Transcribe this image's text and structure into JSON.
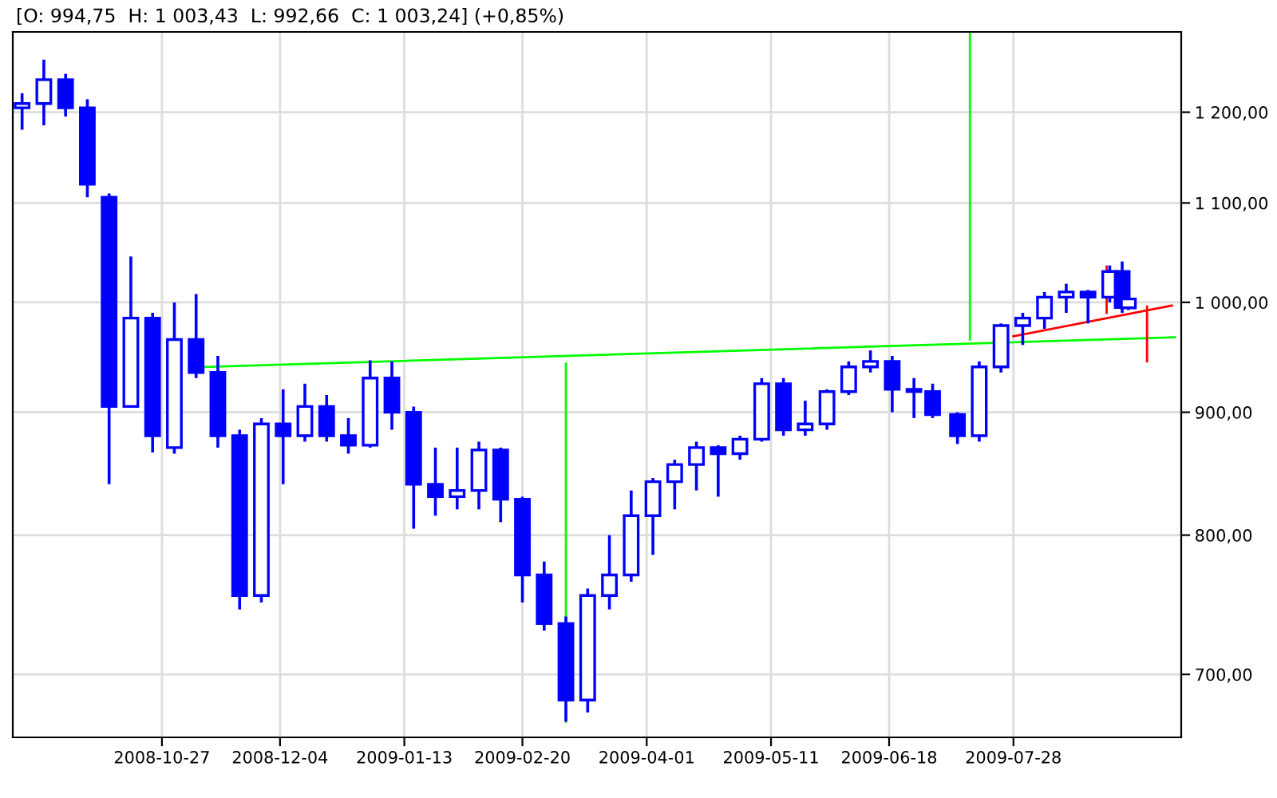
{
  "chart_data": {
    "type": "candlestick",
    "title": "[O: 994,75  H: 1 003,43  L: 992,66  C: 1 003,24] (+0,85%)",
    "color": "#0000ff",
    "x": [
      "2008-09-12",
      "2008-09-19",
      "2008-09-26",
      "2008-10-03",
      "2008-10-10",
      "2008-10-17",
      "2008-10-24",
      "2008-10-31",
      "2008-11-07",
      "2008-11-14",
      "2008-11-21",
      "2008-11-28",
      "2008-12-05",
      "2008-12-12",
      "2008-12-19",
      "2008-12-26",
      "2009-01-02",
      "2009-01-09",
      "2009-01-16",
      "2009-01-23",
      "2009-01-30",
      "2009-02-06",
      "2009-02-13",
      "2009-02-20",
      "2009-02-27",
      "2009-03-06",
      "2009-03-13",
      "2009-03-20",
      "2009-03-27",
      "2009-04-03",
      "2009-04-10",
      "2009-04-17",
      "2009-04-24",
      "2009-05-01",
      "2009-05-08",
      "2009-05-15",
      "2009-05-22",
      "2009-05-29",
      "2009-06-05",
      "2009-06-12",
      "2009-06-19",
      "2009-06-26",
      "2009-07-02",
      "2009-07-10",
      "2009-07-17",
      "2009-07-24",
      "2009-07-31",
      "2009-08-07",
      "2009-08-14",
      "2009-08-21",
      "2009-08-28",
      "2009-09-01",
      "2009-09-03"
    ],
    "ohlc": [
      [
        1205,
        1222,
        1180,
        1210
      ],
      [
        1210,
        1262,
        1185,
        1238
      ],
      [
        1238,
        1245,
        1195,
        1205
      ],
      [
        1205,
        1215,
        1106,
        1120
      ],
      [
        1106,
        1110,
        840,
        905
      ],
      [
        905,
        1045,
        905,
        985
      ],
      [
        985,
        990,
        866,
        880
      ],
      [
        870,
        1000,
        865,
        965
      ],
      [
        965,
        1008,
        930,
        935
      ],
      [
        935,
        950,
        870,
        880
      ],
      [
        880,
        885,
        745,
        755
      ],
      [
        755,
        895,
        750,
        890
      ],
      [
        890,
        920,
        840,
        880
      ],
      [
        880,
        925,
        875,
        905
      ],
      [
        905,
        915,
        875,
        880
      ],
      [
        880,
        895,
        865,
        872
      ],
      [
        872,
        946,
        870,
        930
      ],
      [
        930,
        945,
        885,
        900
      ],
      [
        900,
        905,
        805,
        840
      ],
      [
        840,
        870,
        815,
        830
      ],
      [
        830,
        870,
        820,
        835
      ],
      [
        835,
        875,
        820,
        868
      ],
      [
        868,
        870,
        810,
        828
      ],
      [
        828,
        830,
        750,
        770
      ],
      [
        770,
        780,
        730,
        735
      ],
      [
        735,
        740,
        669,
        683
      ],
      [
        683,
        760,
        675,
        755
      ],
      [
        755,
        800,
        745,
        770
      ],
      [
        770,
        835,
        765,
        815
      ],
      [
        815,
        845,
        785,
        842
      ],
      [
        842,
        860,
        820,
        856
      ],
      [
        856,
        875,
        835,
        870
      ],
      [
        870,
        872,
        830,
        865
      ],
      [
        865,
        880,
        860,
        877
      ],
      [
        877,
        930,
        875,
        925
      ],
      [
        925,
        930,
        880,
        885
      ],
      [
        885,
        910,
        880,
        890
      ],
      [
        890,
        920,
        885,
        918
      ],
      [
        918,
        945,
        915,
        940
      ],
      [
        940,
        955,
        935,
        945
      ],
      [
        945,
        950,
        900,
        920
      ],
      [
        920,
        930,
        895,
        918
      ],
      [
        918,
        925,
        895,
        898
      ],
      [
        898,
        900,
        873,
        880
      ],
      [
        880,
        945,
        875,
        940
      ],
      [
        940,
        980,
        935,
        978
      ],
      [
        978,
        990,
        960,
        985
      ],
      [
        985,
        1010,
        975,
        1005
      ],
      [
        1005,
        1018,
        990,
        1010
      ],
      [
        1010,
        1012,
        980,
        1005
      ],
      [
        1005,
        1036,
        1000,
        1030
      ],
      [
        1030,
        1040,
        990,
        995
      ],
      [
        994.75,
        1003.43,
        992.66,
        1003.24
      ]
    ],
    "series": [
      {
        "type": "line",
        "color": "#00ff00",
        "x": [
          "2008-11-10",
          "2009-09-18"
        ],
        "values": [
          940,
          967
        ]
      },
      {
        "type": "line",
        "color": "#00ff00",
        "x": [
          "2009-03-06",
          "2009-03-06"
        ],
        "values": [
          943,
          669
        ]
      },
      {
        "type": "line",
        "color": "#00ff00",
        "x": [
          "2009-07-14",
          "2009-07-14"
        ],
        "values": [
          1296,
          965
        ]
      },
      {
        "type": "line",
        "color": "#ff0000",
        "x": [
          "2009-07-28",
          "2009-09-17"
        ],
        "values": [
          968,
          997
        ]
      },
      {
        "type": "line",
        "color": "#ff0000",
        "x": [
          "2009-08-27",
          "2009-08-27"
        ],
        "values": [
          990,
          1035
        ]
      },
      {
        "type": "line",
        "color": "#ff0000",
        "x": [
          "2009-09-09",
          "2009-09-09"
        ],
        "values": [
          996,
          945
        ]
      }
    ],
    "log": "y",
    "xlim": [
      "2008-09-09",
      "2009-09-20"
    ],
    "xticks": [
      "2008-10-27",
      "2008-12-04",
      "2009-01-13",
      "2009-02-20",
      "2009-04-01",
      "2009-05-11",
      "2009-06-18",
      "2009-07-28"
    ],
    "ylim": [
      659,
      1296
    ],
    "yticks": [
      {
        "value": 700,
        "label": "700,00"
      },
      {
        "value": 800,
        "label": "800,00"
      },
      {
        "value": 900,
        "label": "900,00"
      },
      {
        "value": 1000,
        "label": "1 000,00"
      },
      {
        "value": 1100,
        "label": "1 100,00"
      },
      {
        "value": 1200,
        "label": "1 200,00"
      }
    ],
    "grid": true,
    "line_style": "solid"
  }
}
